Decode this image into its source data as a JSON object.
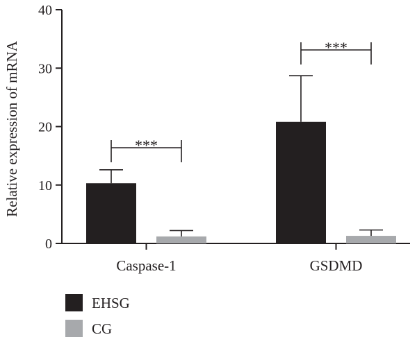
{
  "chart_data": {
    "type": "bar",
    "ylabel": "Relative expression of mRNA",
    "ylim": [
      0,
      40
    ],
    "yticks": [
      "0",
      "10",
      "20",
      "30",
      "40"
    ],
    "categories": [
      "Caspase-1",
      "GSDMD"
    ],
    "series": [
      {
        "name": "EHSG",
        "color": "#231f20",
        "values": [
          10.3,
          20.8
        ],
        "errors": [
          2.3,
          7.9
        ]
      },
      {
        "name": "CG",
        "color": "#a7a9ac",
        "values": [
          1.2,
          1.3
        ],
        "errors": [
          1.0,
          1.0
        ]
      }
    ],
    "significance": [
      "***",
      "***"
    ],
    "legend_position": "bottom-left"
  }
}
